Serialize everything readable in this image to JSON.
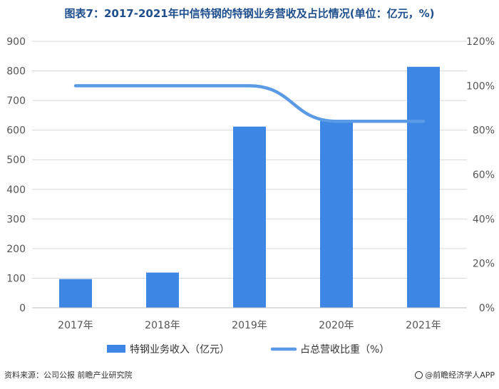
{
  "title": "图表7：2017-2021年中信特钢的特钢业务营收及占比情况(单位：亿元，%)",
  "source_text": "资料来源：公司公报 前瞻产业研究院",
  "brand_text": "@前瞻经济学人APP",
  "chart_data": {
    "type": "bar",
    "categories": [
      "2017年",
      "2018年",
      "2019年",
      "2020年",
      "2021年"
    ],
    "series": [
      {
        "name": "特钢业务收入（亿元）",
        "type": "bar",
        "axis": "left",
        "values": [
          97,
          119,
          612,
          631,
          814
        ],
        "color": "#3e86e3"
      },
      {
        "name": "占总营收比重（%）",
        "type": "line",
        "axis": "right",
        "values": [
          100,
          100,
          100,
          84,
          84
        ],
        "color": "#5b9be6"
      }
    ],
    "yticks_left": [
      "0",
      "100",
      "200",
      "300",
      "400",
      "500",
      "600",
      "700",
      "800",
      "900"
    ],
    "yticks_right": [
      "0%",
      "20%",
      "40%",
      "60%",
      "80%",
      "100%",
      "120%"
    ],
    "ylim_left": [
      0,
      900
    ],
    "ylim_right": [
      0,
      120
    ],
    "grid": true,
    "legend_position": "bottom"
  }
}
